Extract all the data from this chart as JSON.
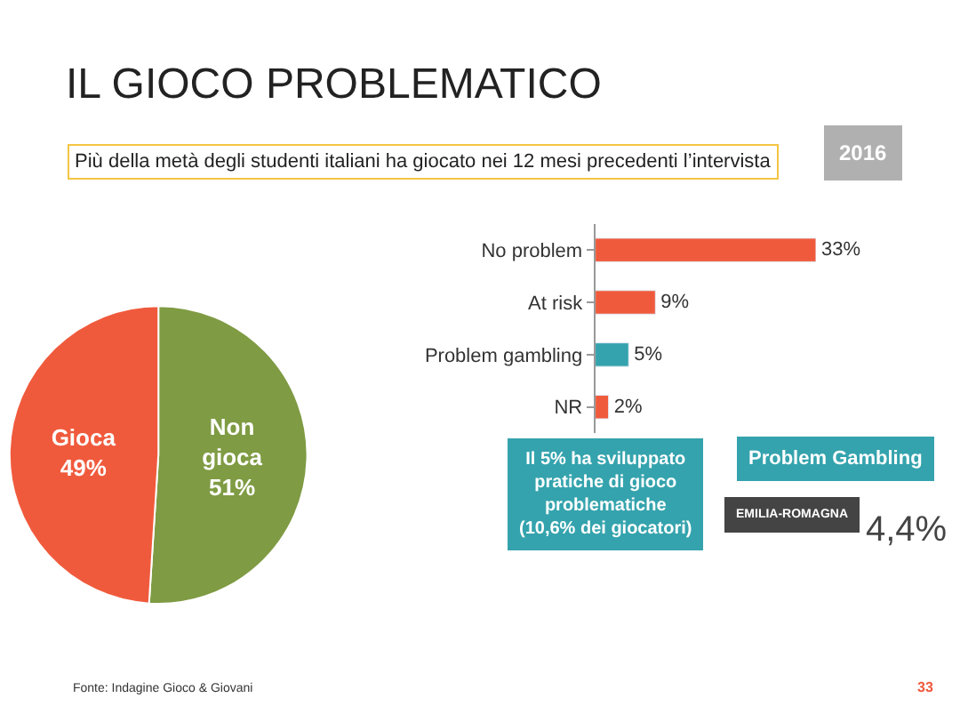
{
  "chart_data": [
    {
      "type": "pie",
      "title": "IL GIOCO PROBLEMATICO",
      "subtitle": "Più della metà degli studenti italiani ha giocato nei 12 mesi precedenti l’intervista",
      "categories": [
        "Non gioca",
        "Gioca"
      ],
      "values": [
        51,
        49
      ],
      "value_labels": [
        "51%",
        "49%"
      ],
      "colors": [
        "#7f9b43",
        "#f05a3c"
      ],
      "annotations": [
        "2016"
      ]
    },
    {
      "type": "bar",
      "orientation": "horizontal",
      "categories": [
        "No problem",
        "At risk",
        "Problem gambling",
        "NR"
      ],
      "values": [
        33,
        9,
        5,
        2
      ],
      "value_labels": [
        "33%",
        "9%",
        "5%",
        "2%"
      ],
      "colors": [
        "#f05a3c",
        "#f05a3c",
        "#34a3ad",
        "#f05a3c"
      ],
      "annotations": [
        "Problem Gambling",
        "Il 5% ha sviluppato\npratiche di gioco\nproblematiche\n(10,6% dei giocatori)",
        "EMILIA-ROMAGNA",
        "4,4%",
        "Fonte: Indagine Gioco & Giovani",
        "33"
      ]
    }
  ]
}
